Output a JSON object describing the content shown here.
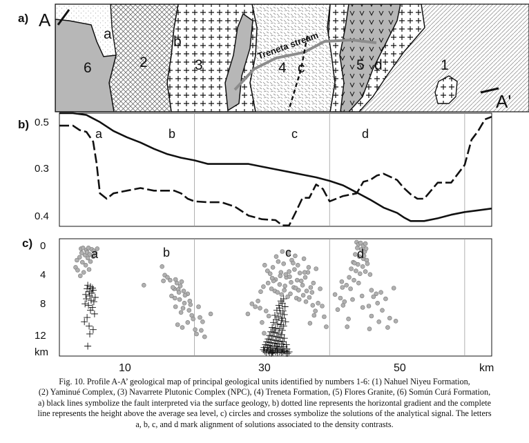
{
  "panel_a": {
    "panel_label": "a)",
    "start_label": "A",
    "end_label": "A'",
    "stream_label": "Treneta stream",
    "unit_numbers": [
      "6",
      "2",
      "3",
      "4",
      "5",
      "1"
    ],
    "alignment_letters": [
      "a",
      "b",
      "c",
      "d"
    ]
  },
  "panel_b": {
    "panel_label": "b)",
    "y_ticks": [
      "0.5",
      "0.3",
      "0.4"
    ],
    "alignment_letters": [
      "a",
      "b",
      "c",
      "d"
    ]
  },
  "panel_c": {
    "panel_label": "c)",
    "y_ticks": [
      "0",
      "4",
      "8",
      "12",
      "km"
    ],
    "alignment_letters": [
      "a",
      "b",
      "c",
      "d"
    ]
  },
  "x_ticks": [
    "10",
    "30",
    "50",
    "km"
  ],
  "chart_data": {
    "type": "line",
    "x_range_km": [
      0,
      64
    ],
    "series": [
      {
        "style": "solid",
        "x": [
          0,
          2,
          4,
          6,
          8,
          10,
          12,
          14,
          16,
          18,
          20,
          22,
          24,
          26,
          28,
          30,
          32,
          34,
          36,
          38,
          40,
          42,
          44,
          46,
          48,
          50,
          51,
          52,
          54,
          56,
          58,
          60,
          62,
          64
        ],
        "y": [
          0.49,
          0.49,
          0.492,
          0.5,
          0.51,
          0.517,
          0.523,
          0.53,
          0.536,
          0.54,
          0.543,
          0.547,
          0.547,
          0.547,
          0.547,
          0.55,
          0.553,
          0.556,
          0.559,
          0.562,
          0.566,
          0.571,
          0.579,
          0.587,
          0.596,
          0.602,
          0.607,
          0.611,
          0.611,
          0.608,
          0.604,
          0.601,
          0.599,
          0.597
        ]
      },
      {
        "style": "dashed",
        "x": [
          0,
          2,
          3,
          4,
          5,
          5.5,
          6,
          7,
          8,
          10,
          12,
          14,
          15,
          17,
          18,
          19,
          20,
          22,
          24,
          26,
          27,
          28,
          30,
          32,
          33,
          34,
          35,
          36,
          37,
          38,
          39,
          40,
          42,
          44,
          45,
          46,
          47,
          48,
          50,
          51,
          52,
          53,
          54,
          56,
          58,
          60,
          61,
          62,
          63,
          64
        ],
        "y": [
          0.504,
          0.504,
          0.509,
          0.511,
          0.522,
          0.546,
          0.58,
          0.586,
          0.58,
          0.577,
          0.574,
          0.577,
          0.577,
          0.577,
          0.58,
          0.586,
          0.589,
          0.59,
          0.59,
          0.595,
          0.6,
          0.605,
          0.609,
          0.61,
          0.616,
          0.616,
          0.601,
          0.585,
          0.585,
          0.57,
          0.575,
          0.589,
          0.583,
          0.58,
          0.567,
          0.565,
          0.56,
          0.558,
          0.565,
          0.574,
          0.581,
          0.586,
          0.586,
          0.568,
          0.568,
          0.548,
          0.52,
          0.51,
          0.497,
          0.494
        ]
      }
    ],
    "depth_solutions": {
      "circle_groups": [
        {
          "alignment": "a",
          "x_km": [
            3.2,
            3.5,
            4.0,
            4.3,
            4.8,
            5.1,
            5.6,
            3.3,
            3.8,
            4.1,
            4.5,
            5.0,
            3.0,
            2.6,
            3.4,
            4.2,
            3.9,
            4.6,
            2.4,
            2.7,
            3.6,
            4.4,
            5.3,
            3.1
          ],
          "depth_km": [
            1.0,
            0.9,
            1.2,
            0.9,
            1.1,
            1.3,
            1.0,
            1.6,
            1.9,
            1.5,
            1.8,
            2.1,
            2.2,
            2.6,
            2.9,
            2.3,
            3.3,
            2.8,
            3.6,
            4.0,
            4.3,
            3.9,
            1.6,
            4.8
          ]
        },
        {
          "alignment": "b",
          "x_km": [
            15.2,
            15.6,
            16.0,
            16.4,
            17.2,
            17.4,
            17.9,
            18.1,
            17.0,
            17.6,
            18.4,
            19.0,
            16.6,
            17.1,
            17.8,
            18.5,
            19.4,
            17.2,
            18.3,
            19.2,
            18.0,
            19.6,
            20.8,
            19.0,
            17.5,
            18.2,
            20.1,
            21.0,
            20.3,
            21.5,
            12.5,
            15.4,
            16.8,
            17.7,
            18.6,
            19.3,
            20.6,
            19.8,
            21.2,
            22.4
          ],
          "depth_km": [
            3.5,
            4.7,
            5.0,
            5.4,
            5.3,
            5.8,
            6.2,
            5.6,
            6.6,
            6.7,
            6.9,
            7.3,
            7.6,
            7.9,
            8.1,
            8.6,
            8.8,
            9.1,
            9.3,
            9.6,
            9.9,
            10.3,
            10.6,
            11.3,
            11.6,
            12.0,
            12.3,
            12.4,
            12.9,
            13.3,
            6.1,
            5.5,
            6.4,
            7.1,
            7.5,
            8.3,
            9.1,
            10.8,
            11.2,
            10.1
          ]
        },
        {
          "alignment": "c",
          "x_km": [
            30.4,
            30.8,
            31.2,
            31.6,
            32.0,
            32.4,
            32.8,
            33.2,
            33.6,
            34.0,
            34.4,
            34.8,
            35.2,
            35.6,
            36.0,
            36.4,
            36.8,
            37.2,
            37.6,
            38.0,
            30.2,
            30.9,
            31.4,
            31.9,
            32.3,
            32.9,
            33.3,
            33.8,
            34.2,
            34.7,
            35.1,
            35.5,
            36.1,
            36.5,
            37.0,
            37.5,
            29.8,
            29.4,
            29.0,
            37.9,
            38.3,
            31.7,
            32.6,
            33.4,
            34.3,
            35.0,
            35.8,
            36.6,
            37.4,
            32.1,
            33.9,
            34.9,
            36.2,
            29.7,
            30.6,
            38.6,
            31.0,
            37.7,
            30.0,
            38.9,
            35.3,
            33.0,
            34.6,
            36.9,
            31.5,
            32.7,
            33.5,
            34.1,
            35.4,
            36.3,
            28.5,
            27.9,
            39.2,
            39.5,
            31.8,
            30.3,
            37.1
          ],
          "depth_km": [
            3.3,
            4.1,
            4.5,
            3.6,
            5.3,
            2.8,
            4.3,
            3.1,
            5.0,
            4.2,
            2.6,
            3.9,
            5.4,
            4.4,
            6.1,
            5.0,
            4.3,
            6.4,
            5.8,
            3.8,
            6.3,
            5.8,
            6.6,
            6.9,
            7.1,
            7.4,
            6.8,
            7.7,
            7.3,
            6.4,
            7.9,
            8.1,
            7.5,
            8.4,
            7.8,
            8.9,
            7.0,
            8.3,
            9.1,
            9.7,
            8.6,
            5.5,
            6.0,
            6.2,
            5.7,
            6.5,
            5.5,
            6.9,
            7.1,
            2.1,
            1.6,
            2.0,
            2.4,
            9.3,
            9.7,
            6.6,
            10.4,
            10.3,
            11.3,
            9.0,
            3.3,
            1.4,
            3.0,
            3.6,
            5.1,
            4.8,
            4.6,
            4.9,
            6.8,
            4.3,
            8.7,
            10.1,
            10.5,
            11.9,
            12.4,
            12.8,
            11.4
          ]
        },
        {
          "alignment": "d",
          "x_km": [
            44.0,
            44.3,
            44.6,
            45.0,
            45.3,
            44.1,
            44.7,
            45.2,
            43.8,
            44.4,
            45.0,
            45.5,
            43.5,
            44.2,
            44.9,
            45.6,
            43.2,
            43.9,
            44.5,
            45.3,
            42.9,
            43.6,
            44.3,
            41.8,
            42.5,
            43.1,
            40.8,
            41.6,
            46.2,
            46.9,
            47.6,
            48.3,
            42.0,
            44.9,
            47.8,
            48.9,
            42.8,
            49.8,
            45.9,
            48.6,
            45.4,
            49.5,
            46.5,
            47.1,
            41.2,
            42.2,
            43.4,
            44.8,
            45.8,
            46.2,
            47.3,
            42.6,
            46.0,
            43.7,
            41.9,
            45.1
          ],
          "depth_km": [
            0.1,
            0.4,
            0.2,
            0.6,
            0.3,
            0.9,
            1.1,
            1.4,
            1.8,
            2.1,
            2.4,
            2.6,
            2.9,
            3.2,
            3.5,
            3.1,
            3.8,
            4.1,
            4.5,
            4.2,
            5.0,
            5.4,
            5.8,
            5.6,
            6.1,
            6.6,
            7.4,
            7.9,
            6.8,
            7.3,
            7.1,
            8.0,
            8.9,
            9.2,
            9.6,
            10.7,
            10.8,
            11.1,
            12.2,
            12.0,
            1.0,
            6.5,
            7.7,
            8.6,
            9.5,
            8.4,
            8.1,
            7.6,
            9.0,
            10.4,
            11.2,
            11.9,
            4.6,
            3.0,
            6.4,
            2.0
          ]
        }
      ],
      "cross_groups": [
        {
          "alignment": "a",
          "x_km": [
            4.2,
            4.6,
            4.1,
            5.0,
            4.4,
            4.8,
            3.9,
            4.5,
            5.3,
            4.0,
            4.7,
            5.1,
            3.8,
            4.3,
            4.9,
            4.6,
            5.2,
            4.1,
            3.7,
            4.4,
            5.0,
            4.5,
            4.2,
            4.9
          ],
          "depth_km": [
            6.1,
            6.3,
            6.6,
            6.8,
            7.0,
            7.2,
            7.4,
            7.6,
            7.8,
            8.0,
            8.2,
            8.4,
            8.7,
            8.9,
            9.2,
            9.6,
            10.1,
            10.6,
            11.2,
            11.8,
            12.3,
            12.9,
            14.6,
            6.5
          ]
        },
        {
          "alignment": "c",
          "x_km": [
            33.2,
            32.8,
            33.0,
            32.5,
            33.4,
            32.6,
            32.2,
            33.1,
            32.7,
            33.3,
            31.9,
            32.4,
            33.0,
            32.1,
            32.9,
            33.5,
            31.7,
            32.3,
            32.8,
            33.2,
            31.5,
            32.0,
            32.6,
            33.0,
            31.3,
            31.8,
            32.4,
            32.9,
            31.1,
            31.6,
            32.2,
            32.7,
            33.3,
            30.9,
            31.4,
            32.0,
            32.5,
            33.1,
            30.7,
            31.2,
            31.8,
            32.3,
            32.9,
            33.6,
            30.5,
            31.0,
            31.5,
            32.1,
            32.6,
            33.2,
            30.3,
            30.8,
            31.3,
            31.9,
            32.4,
            33.0,
            33.7,
            30.2,
            30.7,
            31.2,
            31.7,
            32.2,
            32.8,
            33.4,
            30.4,
            30.9,
            31.5,
            32.0,
            32.6,
            33.1,
            34.0,
            30.6,
            31.1,
            31.6,
            32.3,
            32.9,
            33.6,
            33.8,
            31.4
          ],
          "depth_km": [
            8.0,
            8.3,
            8.6,
            8.9,
            9.1,
            9.3,
            9.6,
            9.7,
            10.0,
            10.2,
            10.3,
            10.5,
            10.7,
            10.9,
            11.0,
            11.2,
            11.3,
            11.5,
            11.6,
            11.8,
            12.0,
            12.1,
            12.2,
            12.4,
            12.6,
            12.7,
            12.8,
            13.0,
            13.1,
            13.2,
            13.3,
            13.4,
            13.5,
            13.6,
            13.7,
            13.8,
            13.9,
            14.0,
            14.0,
            14.1,
            14.2,
            14.3,
            14.3,
            14.4,
            14.4,
            14.5,
            14.6,
            14.6,
            14.7,
            14.7,
            14.8,
            14.8,
            14.9,
            14.9,
            15.0,
            15.0,
            15.0,
            15.1,
            15.1,
            15.1,
            15.2,
            15.2,
            15.2,
            15.3,
            15.3,
            15.3,
            15.4,
            15.4,
            15.4,
            15.4,
            15.4,
            15.5,
            15.5,
            15.5,
            15.5,
            15.5,
            15.6,
            15.6,
            15.6
          ]
        }
      ]
    }
  },
  "caption": {
    "lines": [
      "Fig. 10.  Profile A-A’ geological map of principal geological units identified by numbers 1-6: (1) Nahuel Niyeu Formation,",
      "(2) Yaminué Complex, (3) Navarrete Plutonic Complex (NPC), (4)  Treneta Formation, (5) Flores Granite, (6) Somún Curá Formation,",
      "a) black lines symbolize the fault interpreted via the surface geology, b) dotted line represents the horizontal gradient and the complete",
      "line represents the height above the average sea level, c) circles and crosses symbolize the solutions of the analytical signal. The letters",
      "a, b, c, and d mark alignment of solutions associated to the density contrasts."
    ]
  },
  "colors": {
    "ink": "#111111",
    "grey_fill": "#b7b7b7",
    "circle_fill": "#b0b0b0",
    "stream": "#8c8c8c",
    "grid": "#9a9a9a"
  }
}
